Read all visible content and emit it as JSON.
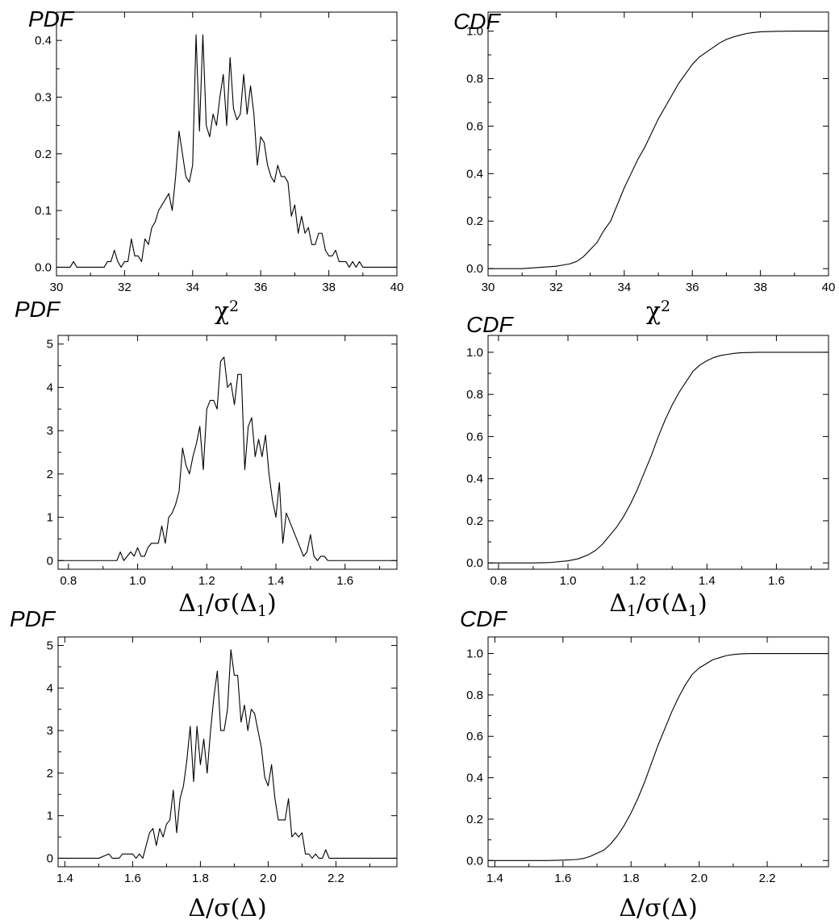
{
  "chart_data": [
    {
      "id": "p1",
      "type": "line",
      "title": "PDF",
      "xlabel": {
        "main": "χ",
        "sup": "2"
      },
      "xlim": [
        30,
        40
      ],
      "ylim": [
        -0.015,
        0.45
      ],
      "xticks": [
        "30",
        "32",
        "34",
        "36",
        "38",
        "40"
      ],
      "yticks": [
        "0.0",
        "0.1",
        "0.2",
        "0.3",
        "0.4"
      ],
      "x": [
        30.0,
        30.2,
        30.4,
        30.5,
        30.6,
        30.8,
        31.0,
        31.2,
        31.4,
        31.5,
        31.6,
        31.7,
        31.8,
        31.9,
        32.0,
        32.1,
        32.2,
        32.3,
        32.4,
        32.5,
        32.6,
        32.7,
        32.8,
        32.9,
        33.0,
        33.1,
        33.2,
        33.3,
        33.4,
        33.5,
        33.6,
        33.7,
        33.8,
        33.9,
        34.0,
        34.1,
        34.2,
        34.3,
        34.4,
        34.5,
        34.6,
        34.7,
        34.8,
        34.9,
        35.0,
        35.1,
        35.2,
        35.3,
        35.4,
        35.5,
        35.6,
        35.7,
        35.8,
        35.9,
        36.0,
        36.1,
        36.2,
        36.3,
        36.4,
        36.5,
        36.6,
        36.7,
        36.8,
        36.9,
        37.0,
        37.1,
        37.2,
        37.3,
        37.4,
        37.5,
        37.6,
        37.7,
        37.8,
        37.9,
        38.0,
        38.1,
        38.2,
        38.3,
        38.4,
        38.5,
        38.6,
        38.7,
        38.8,
        38.9,
        39.0,
        39.2,
        39.4,
        39.6,
        39.8,
        40.0
      ],
      "y": [
        0,
        0,
        0,
        0.01,
        0,
        0,
        0,
        0,
        0,
        0.01,
        0.01,
        0.03,
        0.01,
        0,
        0.01,
        0.01,
        0.05,
        0.02,
        0.02,
        0.01,
        0.05,
        0.04,
        0.07,
        0.08,
        0.1,
        0.11,
        0.12,
        0.13,
        0.1,
        0.16,
        0.24,
        0.2,
        0.16,
        0.15,
        0.18,
        0.41,
        0.24,
        0.41,
        0.25,
        0.23,
        0.27,
        0.25,
        0.3,
        0.34,
        0.25,
        0.37,
        0.28,
        0.26,
        0.27,
        0.34,
        0.27,
        0.32,
        0.27,
        0.18,
        0.23,
        0.22,
        0.18,
        0.16,
        0.15,
        0.18,
        0.16,
        0.16,
        0.15,
        0.09,
        0.11,
        0.06,
        0.09,
        0.06,
        0.07,
        0.04,
        0.04,
        0.06,
        0.06,
        0.03,
        0.02,
        0.02,
        0.03,
        0.01,
        0.01,
        0.01,
        0,
        0.01,
        0,
        0.01,
        0,
        0,
        0,
        0,
        0,
        0
      ]
    },
    {
      "id": "c1",
      "type": "line",
      "title": "CDF",
      "xlabel": {
        "main": "χ",
        "sup": "2"
      },
      "xlim": [
        30,
        40
      ],
      "ylim": [
        -0.03,
        1.08
      ],
      "xticks": [
        "30",
        "32",
        "34",
        "36",
        "38",
        "40"
      ],
      "yticks": [
        "0.0",
        "0.2",
        "0.4",
        "0.6",
        "0.8",
        "1.0"
      ],
      "x": [
        30,
        31,
        31.5,
        32,
        32.2,
        32.4,
        32.6,
        32.8,
        33,
        33.2,
        33.4,
        33.6,
        33.8,
        34,
        34.2,
        34.4,
        34.6,
        34.8,
        35,
        35.2,
        35.4,
        35.6,
        35.8,
        36,
        36.2,
        36.4,
        36.6,
        36.8,
        37,
        37.2,
        37.4,
        37.6,
        37.8,
        38,
        38.5,
        39,
        40
      ],
      "y": [
        0,
        0,
        0.005,
        0.01,
        0.015,
        0.02,
        0.03,
        0.05,
        0.08,
        0.11,
        0.16,
        0.2,
        0.27,
        0.34,
        0.4,
        0.46,
        0.51,
        0.57,
        0.63,
        0.68,
        0.73,
        0.78,
        0.82,
        0.86,
        0.89,
        0.91,
        0.93,
        0.95,
        0.965,
        0.975,
        0.983,
        0.99,
        0.994,
        0.997,
        0.999,
        1,
        1
      ]
    },
    {
      "id": "p2",
      "type": "line",
      "title": "PDF",
      "xlabel": {
        "parts": [
          [
            "Δ",
            ""
          ],
          [
            "1",
            "sub"
          ],
          [
            "/σ(Δ",
            ""
          ],
          [
            "1",
            "sub"
          ],
          [
            ")",
            ""
          ]
        ]
      },
      "xlim": [
        0.77,
        1.75
      ],
      "ylim": [
        -0.2,
        5.2
      ],
      "xticks": [
        "0.8",
        "1.0",
        "1.2",
        "1.4",
        "1.6"
      ],
      "xtick_values": [
        0.8,
        1.0,
        1.2,
        1.4,
        1.6
      ],
      "yticks": [
        "0",
        "1",
        "2",
        "3",
        "4",
        "5"
      ],
      "x": [
        0.77,
        0.85,
        0.94,
        0.95,
        0.96,
        0.97,
        0.98,
        0.99,
        1.0,
        1.01,
        1.02,
        1.03,
        1.04,
        1.05,
        1.06,
        1.07,
        1.08,
        1.09,
        1.1,
        1.11,
        1.12,
        1.13,
        1.14,
        1.15,
        1.16,
        1.17,
        1.18,
        1.19,
        1.2,
        1.21,
        1.22,
        1.23,
        1.24,
        1.25,
        1.26,
        1.27,
        1.28,
        1.29,
        1.3,
        1.31,
        1.32,
        1.33,
        1.34,
        1.35,
        1.36,
        1.37,
        1.38,
        1.39,
        1.4,
        1.41,
        1.42,
        1.43,
        1.44,
        1.45,
        1.46,
        1.47,
        1.48,
        1.49,
        1.5,
        1.51,
        1.52,
        1.53,
        1.54,
        1.55,
        1.6,
        1.7,
        1.75
      ],
      "y": [
        0,
        0,
        0,
        0.2,
        0,
        0.1,
        0.2,
        0.1,
        0.3,
        0.1,
        0.1,
        0.3,
        0.4,
        0.4,
        0.4,
        0.8,
        0.4,
        1.0,
        1.1,
        1.3,
        1.6,
        2.6,
        2.2,
        2.0,
        2.4,
        2.7,
        3.1,
        2.1,
        3.5,
        3.7,
        3.7,
        3.5,
        4.6,
        4.7,
        4.0,
        4.1,
        3.6,
        4.3,
        4.3,
        2.1,
        3.1,
        3.3,
        2.4,
        2.8,
        2.4,
        2.9,
        2.0,
        1.4,
        1.0,
        1.8,
        0.4,
        1.1,
        0.9,
        0.7,
        0.5,
        0.3,
        0.1,
        0.2,
        0.6,
        0.1,
        0,
        0.1,
        0.1,
        0,
        0,
        0,
        0
      ]
    },
    {
      "id": "c2",
      "type": "line",
      "title": "CDF",
      "xlabel": {
        "parts": [
          [
            "Δ",
            ""
          ],
          [
            "1",
            "sub"
          ],
          [
            "/σ(Δ",
            ""
          ],
          [
            "1",
            "sub"
          ],
          [
            ")",
            ""
          ]
        ]
      },
      "xlim": [
        0.77,
        1.75
      ],
      "ylim": [
        -0.03,
        1.08
      ],
      "xticks": [
        "0.8",
        "1.0",
        "1.2",
        "1.4",
        "1.6"
      ],
      "xtick_values": [
        0.8,
        1.0,
        1.2,
        1.4,
        1.6
      ],
      "yticks": [
        "0.0",
        "0.2",
        "0.4",
        "0.6",
        "0.8",
        "1.0"
      ],
      "x": [
        0.77,
        0.9,
        0.95,
        1.0,
        1.03,
        1.06,
        1.08,
        1.1,
        1.12,
        1.14,
        1.16,
        1.18,
        1.2,
        1.22,
        1.24,
        1.26,
        1.28,
        1.3,
        1.32,
        1.34,
        1.36,
        1.38,
        1.4,
        1.42,
        1.44,
        1.46,
        1.48,
        1.5,
        1.55,
        1.6,
        1.75
      ],
      "y": [
        0,
        0,
        0.002,
        0.01,
        0.02,
        0.04,
        0.06,
        0.09,
        0.13,
        0.17,
        0.22,
        0.28,
        0.35,
        0.43,
        0.51,
        0.6,
        0.68,
        0.75,
        0.81,
        0.86,
        0.91,
        0.94,
        0.96,
        0.975,
        0.985,
        0.99,
        0.995,
        0.998,
        1,
        1,
        1
      ]
    },
    {
      "id": "p3",
      "type": "line",
      "title": "PDF",
      "xlabel": {
        "parts": [
          [
            "Δ/σ(Δ)",
            ""
          ]
        ]
      },
      "xlim": [
        1.38,
        2.38
      ],
      "ylim": [
        -0.2,
        5.2
      ],
      "xticks": [
        "1.4",
        "1.6",
        "1.8",
        "2.0",
        "2.2"
      ],
      "xtick_values": [
        1.4,
        1.6,
        1.8,
        2.0,
        2.2
      ],
      "yticks": [
        "0",
        "1",
        "2",
        "3",
        "4",
        "5"
      ],
      "x": [
        1.38,
        1.5,
        1.53,
        1.54,
        1.56,
        1.57,
        1.58,
        1.59,
        1.6,
        1.61,
        1.62,
        1.63,
        1.64,
        1.65,
        1.66,
        1.67,
        1.68,
        1.69,
        1.7,
        1.71,
        1.72,
        1.73,
        1.74,
        1.75,
        1.76,
        1.77,
        1.78,
        1.79,
        1.8,
        1.81,
        1.82,
        1.83,
        1.84,
        1.85,
        1.86,
        1.87,
        1.88,
        1.89,
        1.9,
        1.91,
        1.92,
        1.93,
        1.94,
        1.95,
        1.96,
        1.97,
        1.98,
        1.99,
        2.0,
        2.01,
        2.02,
        2.03,
        2.04,
        2.05,
        2.06,
        2.07,
        2.08,
        2.09,
        2.1,
        2.11,
        2.12,
        2.13,
        2.14,
        2.15,
        2.16,
        2.17,
        2.18,
        2.19,
        2.2,
        2.3,
        2.38
      ],
      "y": [
        0,
        0,
        0.1,
        0,
        0,
        0.1,
        0.1,
        0.1,
        0.1,
        0,
        0.1,
        0,
        0.3,
        0.6,
        0.7,
        0.3,
        0.7,
        0.5,
        0.8,
        0.9,
        1.6,
        0.6,
        1.4,
        1.7,
        2.3,
        3.1,
        1.8,
        3.1,
        2.2,
        2.8,
        2.0,
        3.0,
        3.8,
        4.4,
        3.0,
        3.0,
        3.5,
        4.9,
        4.3,
        4.3,
        3.2,
        3.6,
        3.0,
        3.5,
        3.4,
        3.0,
        2.6,
        1.9,
        1.7,
        2.2,
        1.4,
        0.9,
        0.9,
        0.9,
        1.4,
        0.5,
        0.6,
        0.5,
        0.6,
        0.1,
        0.1,
        0,
        0.1,
        0,
        0,
        0.2,
        0,
        0,
        0,
        0,
        0
      ]
    },
    {
      "id": "c3",
      "type": "line",
      "title": "CDF",
      "xlabel": {
        "parts": [
          [
            "Δ/σ(Δ)",
            ""
          ]
        ]
      },
      "xlim": [
        1.38,
        2.38
      ],
      "ylim": [
        -0.03,
        1.08
      ],
      "xticks": [
        "1.4",
        "1.6",
        "1.8",
        "2.0",
        "2.2"
      ],
      "xtick_values": [
        1.4,
        1.6,
        1.8,
        2.0,
        2.2
      ],
      "yticks": [
        "0.0",
        "0.2",
        "0.4",
        "0.6",
        "0.8",
        "1.0"
      ],
      "x": [
        1.38,
        1.55,
        1.6,
        1.64,
        1.66,
        1.68,
        1.7,
        1.72,
        1.74,
        1.76,
        1.78,
        1.8,
        1.82,
        1.84,
        1.86,
        1.88,
        1.9,
        1.92,
        1.94,
        1.96,
        1.98,
        2.0,
        2.02,
        2.04,
        2.06,
        2.08,
        2.1,
        2.12,
        2.15,
        2.2,
        2.38
      ],
      "y": [
        0,
        0,
        0.002,
        0.005,
        0.01,
        0.02,
        0.035,
        0.05,
        0.08,
        0.12,
        0.17,
        0.23,
        0.3,
        0.38,
        0.47,
        0.56,
        0.64,
        0.72,
        0.79,
        0.85,
        0.9,
        0.93,
        0.95,
        0.97,
        0.98,
        0.99,
        0.995,
        0.998,
        1,
        1,
        1
      ]
    }
  ]
}
